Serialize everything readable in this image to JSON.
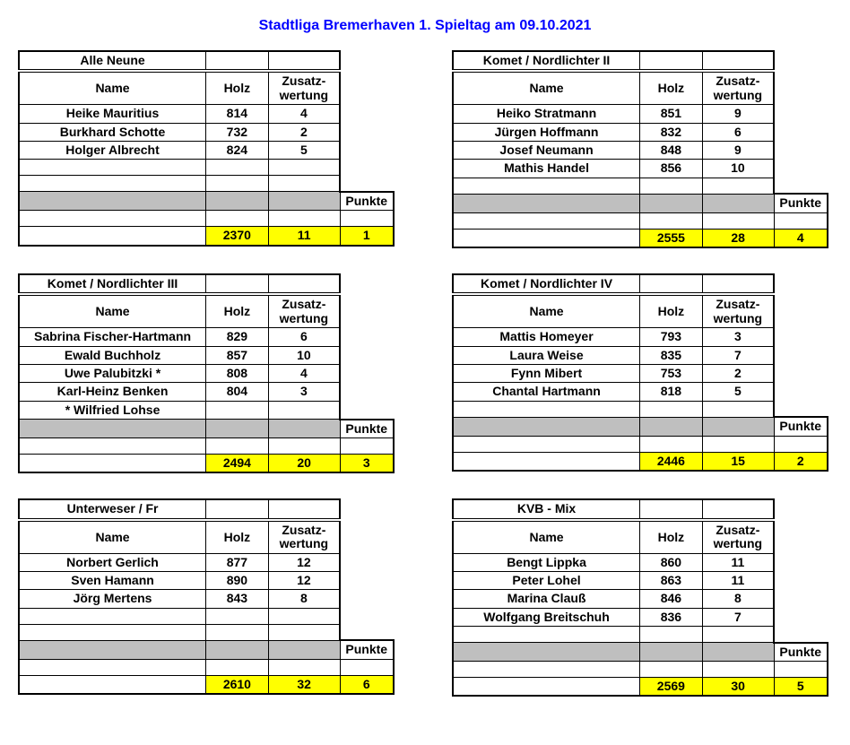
{
  "title": "Stadtliga Bremerhaven  1. Spieltag am 09.10.2021",
  "labels": {
    "name": "Name",
    "holz": "Holz",
    "zusatz": "Zusatz-wertung",
    "punkte": "Punkte"
  },
  "colors": {
    "title": "#0000ff",
    "grey": "#bfbfbf",
    "yellow": "#ffff00",
    "border": "#000000",
    "background": "#ffffff"
  },
  "teams": [
    {
      "team": "Alle Neune",
      "players": [
        {
          "name": "Heike Mauritius",
          "holz": "814",
          "zw": "4"
        },
        {
          "name": "Burkhard Schotte",
          "holz": "732",
          "zw": "2"
        },
        {
          "name": "Holger Albrecht",
          "holz": "824",
          "zw": "5"
        },
        {
          "name": "",
          "holz": "",
          "zw": ""
        },
        {
          "name": "",
          "holz": "",
          "zw": ""
        }
      ],
      "totals": {
        "holz": "2370",
        "zw": "11",
        "punkte": "1"
      }
    },
    {
      "team": "Komet / Nordlichter II",
      "players": [
        {
          "name": "Heiko Stratmann",
          "holz": "851",
          "zw": "9"
        },
        {
          "name": "Jürgen Hoffmann",
          "holz": "832",
          "zw": "6"
        },
        {
          "name": "Josef Neumann",
          "holz": "848",
          "zw": "9"
        },
        {
          "name": "Mathis Handel",
          "holz": "856",
          "zw": "10"
        },
        {
          "name": "",
          "holz": "",
          "zw": ""
        }
      ],
      "totals": {
        "holz": "2555",
        "zw": "28",
        "punkte": "4"
      }
    },
    {
      "team": "Komet / Nordlichter III",
      "players": [
        {
          "name": "Sabrina Fischer-Hartmann",
          "holz": "829",
          "zw": "6"
        },
        {
          "name": "Ewald Buchholz",
          "holz": "857",
          "zw": "10"
        },
        {
          "name": "Uwe Palubitzki *",
          "holz": "808",
          "zw": "4"
        },
        {
          "name": "Karl-Heinz Benken",
          "holz": "804",
          "zw": "3"
        },
        {
          "name": "* Wilfried Lohse",
          "holz": "",
          "zw": ""
        }
      ],
      "totals": {
        "holz": "2494",
        "zw": "20",
        "punkte": "3"
      }
    },
    {
      "team": "Komet / Nordlichter IV",
      "players": [
        {
          "name": "Mattis Homeyer",
          "holz": "793",
          "zw": "3"
        },
        {
          "name": "Laura Weise",
          "holz": "835",
          "zw": "7"
        },
        {
          "name": "Fynn Mibert",
          "holz": "753",
          "zw": "2"
        },
        {
          "name": "Chantal Hartmann",
          "holz": "818",
          "zw": "5"
        },
        {
          "name": "",
          "holz": "",
          "zw": ""
        }
      ],
      "totals": {
        "holz": "2446",
        "zw": "15",
        "punkte": "2"
      }
    },
    {
      "team": "Unterweser / Fr",
      "players": [
        {
          "name": "Norbert Gerlich",
          "holz": "877",
          "zw": "12"
        },
        {
          "name": "Sven Hamann",
          "holz": "890",
          "zw": "12"
        },
        {
          "name": "Jörg Mertens",
          "holz": "843",
          "zw": "8"
        },
        {
          "name": "",
          "holz": "",
          "zw": ""
        },
        {
          "name": "",
          "holz": "",
          "zw": ""
        }
      ],
      "totals": {
        "holz": "2610",
        "zw": "32",
        "punkte": "6"
      }
    },
    {
      "team": "KVB - Mix",
      "players": [
        {
          "name": "Bengt Lippka",
          "holz": "860",
          "zw": "11"
        },
        {
          "name": "Peter Lohel",
          "holz": "863",
          "zw": "11"
        },
        {
          "name": "Marina Clauß",
          "holz": "846",
          "zw": "8"
        },
        {
          "name": "Wolfgang Breitschuh",
          "holz": "836",
          "zw": "7"
        },
        {
          "name": "",
          "holz": "",
          "zw": ""
        }
      ],
      "totals": {
        "holz": "2569",
        "zw": "30",
        "punkte": "5"
      }
    }
  ]
}
